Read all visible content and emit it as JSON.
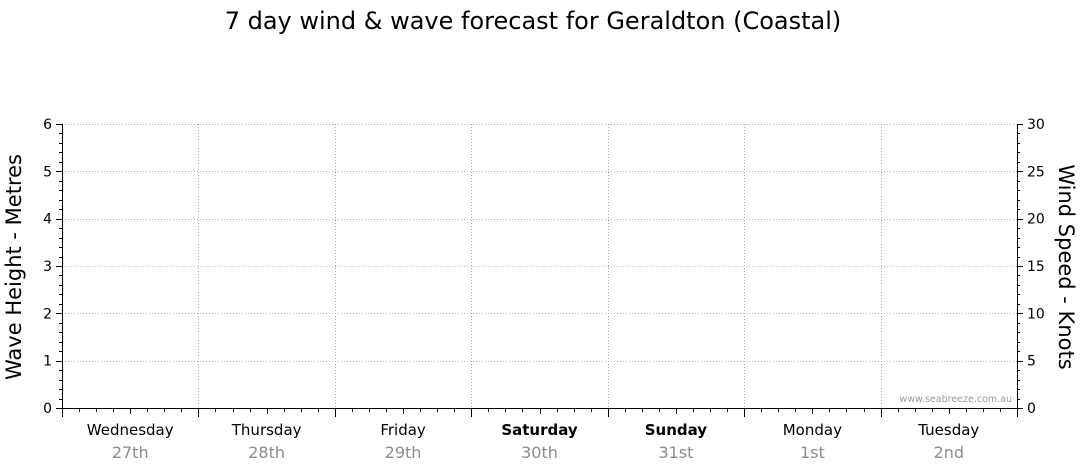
{
  "chart_data": {
    "type": "line",
    "title": "7 day wind & wave forecast for Geraldton (Coastal)",
    "ylabel": "Wave Height - Metres",
    "y2label": "Wind Speed - Knots",
    "ylim": [
      0,
      6
    ],
    "y_ticks": [
      "0",
      "1",
      "2",
      "3",
      "4",
      "5",
      "6"
    ],
    "y2lim": [
      0,
      30
    ],
    "y2_ticks": [
      "0",
      "5",
      "10",
      "15",
      "20",
      "25",
      "30"
    ],
    "days": [
      {
        "name": "Wednesday",
        "date": "27th",
        "bold": false
      },
      {
        "name": "Thursday",
        "date": "28th",
        "bold": false
      },
      {
        "name": "Friday",
        "date": "29th",
        "bold": false
      },
      {
        "name": "Saturday",
        "date": "30th",
        "bold": true
      },
      {
        "name": "Sunday",
        "date": "31st",
        "bold": true
      },
      {
        "name": "Monday",
        "date": "1st",
        "bold": false
      },
      {
        "name": "Tuesday",
        "date": "2nd",
        "bold": false
      }
    ],
    "series": [],
    "grid": true
  },
  "watermark": "www.seabreeze.com.au"
}
